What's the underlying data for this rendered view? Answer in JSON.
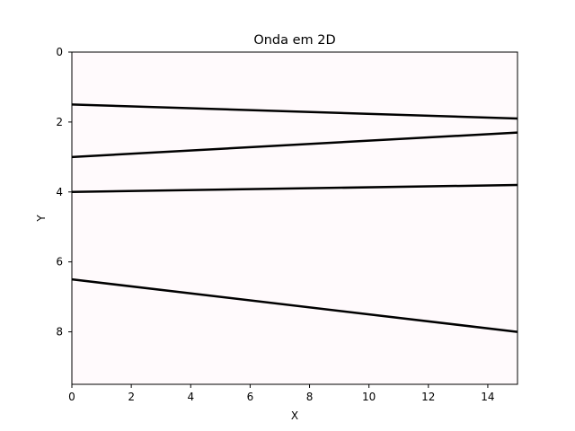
{
  "chart_data": {
    "type": "line",
    "title": "Onda em 2D",
    "xlabel": "X",
    "ylabel": "Y",
    "xlim": [
      0,
      15
    ],
    "ylim": [
      9.5,
      0
    ],
    "y_inverted": true,
    "background_color": "#fffafc",
    "line_color": "#000000",
    "grid": false,
    "legend": "none",
    "x_ticks": [
      0,
      2,
      4,
      6,
      8,
      10,
      12,
      14
    ],
    "y_ticks": [
      0,
      2,
      4,
      6,
      8
    ],
    "series": [
      {
        "x": [
          0,
          15
        ],
        "y": [
          1.5,
          1.9
        ]
      },
      {
        "x": [
          0,
          15
        ],
        "y": [
          3.0,
          2.3
        ]
      },
      {
        "x": [
          0,
          15
        ],
        "y": [
          4.0,
          3.8
        ]
      },
      {
        "x": [
          0,
          15
        ],
        "y": [
          6.5,
          8.0
        ]
      }
    ]
  }
}
